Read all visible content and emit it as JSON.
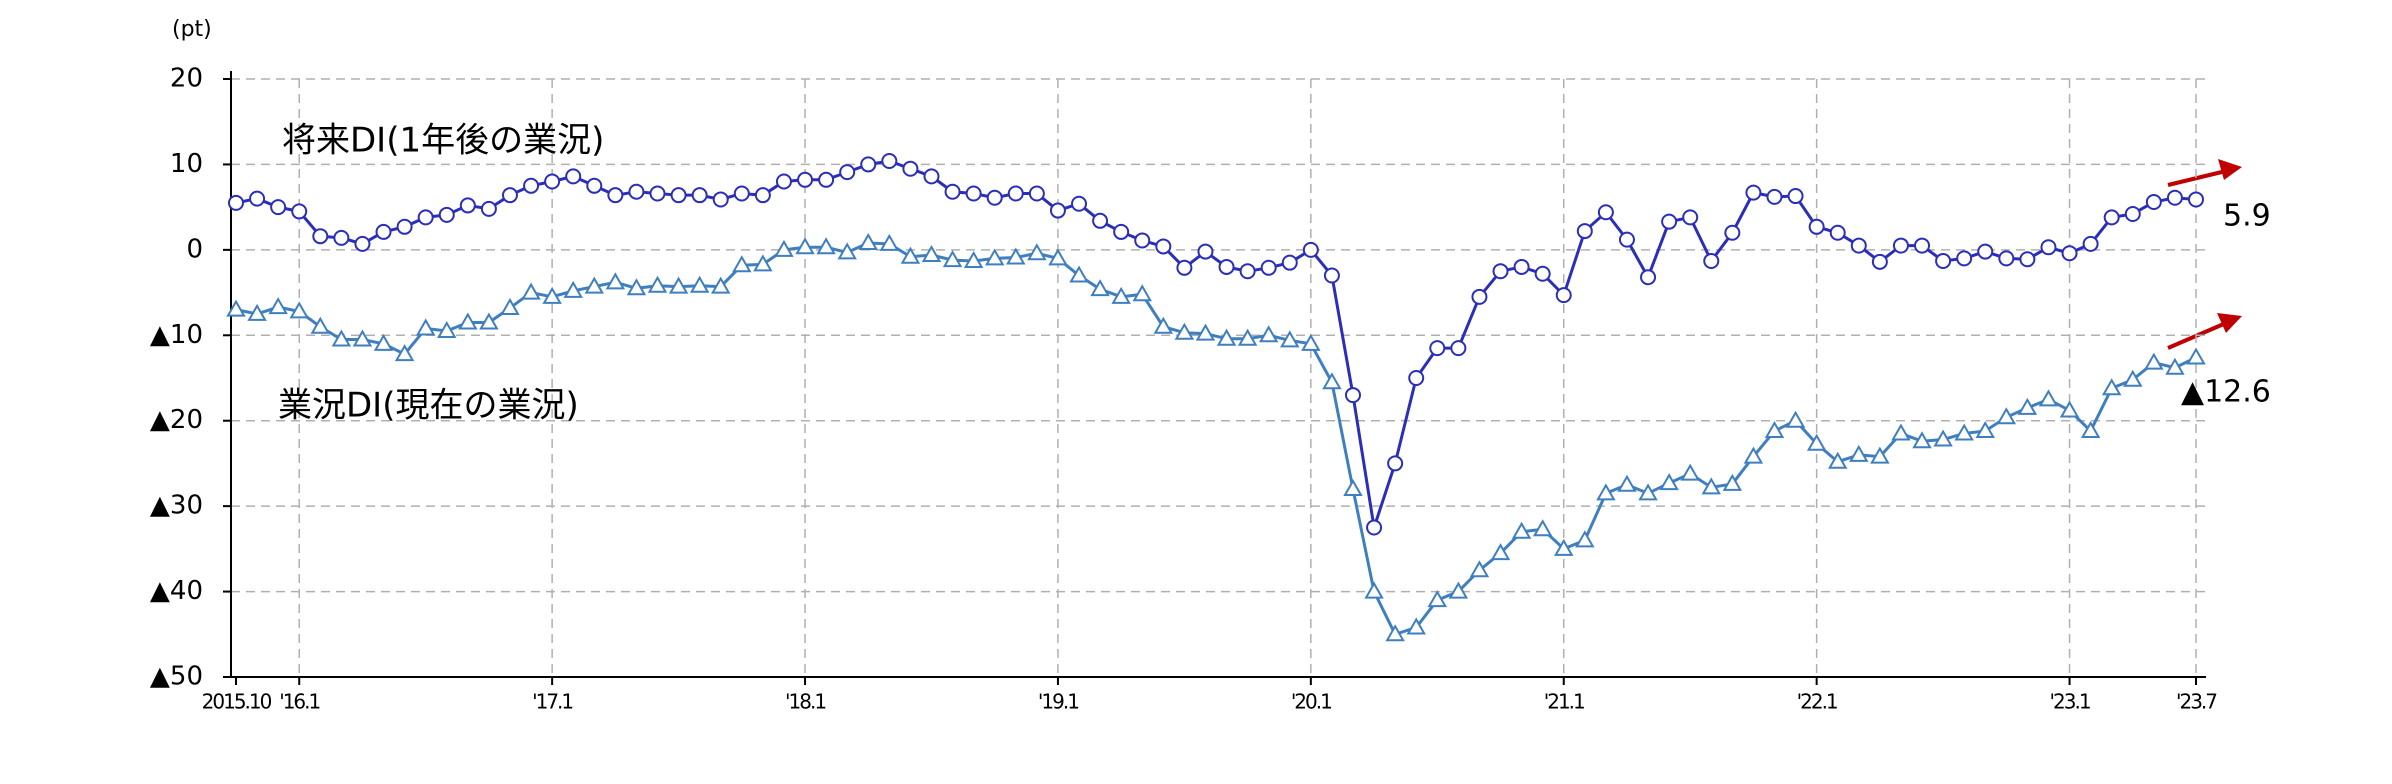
{
  "chart_data": {
    "type": "line",
    "y_label": "(pt)",
    "categories": [
      "2015.10",
      null,
      null,
      "'16.1",
      null,
      null,
      null,
      null,
      null,
      null,
      null,
      null,
      null,
      null,
      null,
      "'17.1",
      null,
      null,
      null,
      null,
      null,
      null,
      null,
      null,
      null,
      null,
      null,
      "'18.1",
      null,
      null,
      null,
      null,
      null,
      null,
      null,
      null,
      null,
      null,
      null,
      "'19.1",
      null,
      null,
      null,
      null,
      null,
      null,
      null,
      null,
      null,
      null,
      null,
      "'20.1",
      null,
      null,
      null,
      null,
      null,
      null,
      null,
      null,
      null,
      null,
      null,
      "'21.1",
      null,
      null,
      null,
      null,
      null,
      null,
      null,
      null,
      null,
      null,
      null,
      "'22.1",
      null,
      null,
      null,
      null,
      null,
      null,
      null,
      null,
      null,
      null,
      null,
      "'23.1",
      null,
      null,
      null,
      null,
      null,
      "'23.7"
    ],
    "series": [
      {
        "name": "将来DI(1年後の業況)",
        "color": "#2b2fb8",
        "marker": "circle",
        "end_label": "5.9",
        "values": [
          5.5,
          6,
          5,
          4.5,
          1.6,
          1.4,
          0.7,
          2.1,
          2.7,
          3.8,
          4.1,
          5.2,
          4.8,
          6.4,
          7.5,
          8,
          8.6,
          7.5,
          6.4,
          6.8,
          6.6,
          6.4,
          6.4,
          5.9,
          6.6,
          6.4,
          8,
          8.2,
          8.2,
          9.1,
          10,
          10.4,
          9.5,
          8.6,
          6.8,
          6.6,
          6.1,
          6.6,
          6.6,
          4.6,
          5.4,
          3.4,
          2.1,
          1.1,
          0.4,
          -2.1,
          -0.2,
          -2,
          -2.5,
          -2.1,
          -1.5,
          0,
          -3,
          -17,
          -32.5,
          -25,
          -15,
          -11.5,
          -11.5,
          -5.5,
          -2.5,
          -2,
          -2.8,
          -5.3,
          2.2,
          4.4,
          1.2,
          -3.2,
          3.3,
          3.8,
          -1.3,
          2,
          6.7,
          6.2,
          6.3,
          2.7,
          2,
          0.5,
          -1.4,
          0.5,
          0.5,
          -1.3,
          -1,
          -0.2,
          -1,
          -1.1,
          0.3,
          -0.4,
          0.7,
          3.8,
          4.2,
          5.6,
          6.1,
          5.9
        ]
      },
      {
        "name": "業況DI(現在の業況)",
        "color": "#3f7fc0",
        "marker": "triangle",
        "end_label": "▲12.6",
        "values": [
          -7,
          -7.5,
          -6.7,
          -7.2,
          -9,
          -10.5,
          -10.5,
          -11,
          -12.2,
          -9.2,
          -9.5,
          -8.5,
          -8.5,
          -6.8,
          -5,
          -5.5,
          -4.8,
          -4.3,
          -3.8,
          -4.5,
          -4.2,
          -4.3,
          -4.2,
          -4.3,
          -1.8,
          -1.7,
          0,
          0.3,
          0.3,
          -0.3,
          0.8,
          0.7,
          -0.8,
          -0.6,
          -1.2,
          -1.3,
          -1,
          -0.9,
          -0.4,
          -1,
          -3,
          -4.6,
          -5.5,
          -5.2,
          -9,
          -9.7,
          -9.8,
          -10.4,
          -10.4,
          -10,
          -10.6,
          -11,
          -15.5,
          -28,
          -40,
          -45,
          -44.2,
          -41,
          -40,
          -37.5,
          -35.5,
          -33,
          -32.7,
          -35,
          -34,
          -28.5,
          -27.5,
          -28.5,
          -27.3,
          -26.2,
          -27.8,
          -27.4,
          -24.2,
          -21.2,
          -20,
          -22.7,
          -24.8,
          -24,
          -24.2,
          -21.5,
          -22.4,
          -22.2,
          -21.5,
          -21.2,
          -19.6,
          -18.5,
          -17.5,
          -18.8,
          -21.2,
          -16.2,
          -15.2,
          -13.2,
          -13.8,
          -12.6
        ]
      }
    ],
    "ylim": [
      -50,
      20
    ],
    "yticks": [
      {
        "value": -50,
        "label": "▲50"
      },
      {
        "value": -40,
        "label": "▲40"
      },
      {
        "value": -30,
        "label": "▲30"
      },
      {
        "value": -20,
        "label": "▲20"
      },
      {
        "value": -10,
        "label": "▲10"
      },
      0,
      10,
      20
    ],
    "grid": true
  }
}
